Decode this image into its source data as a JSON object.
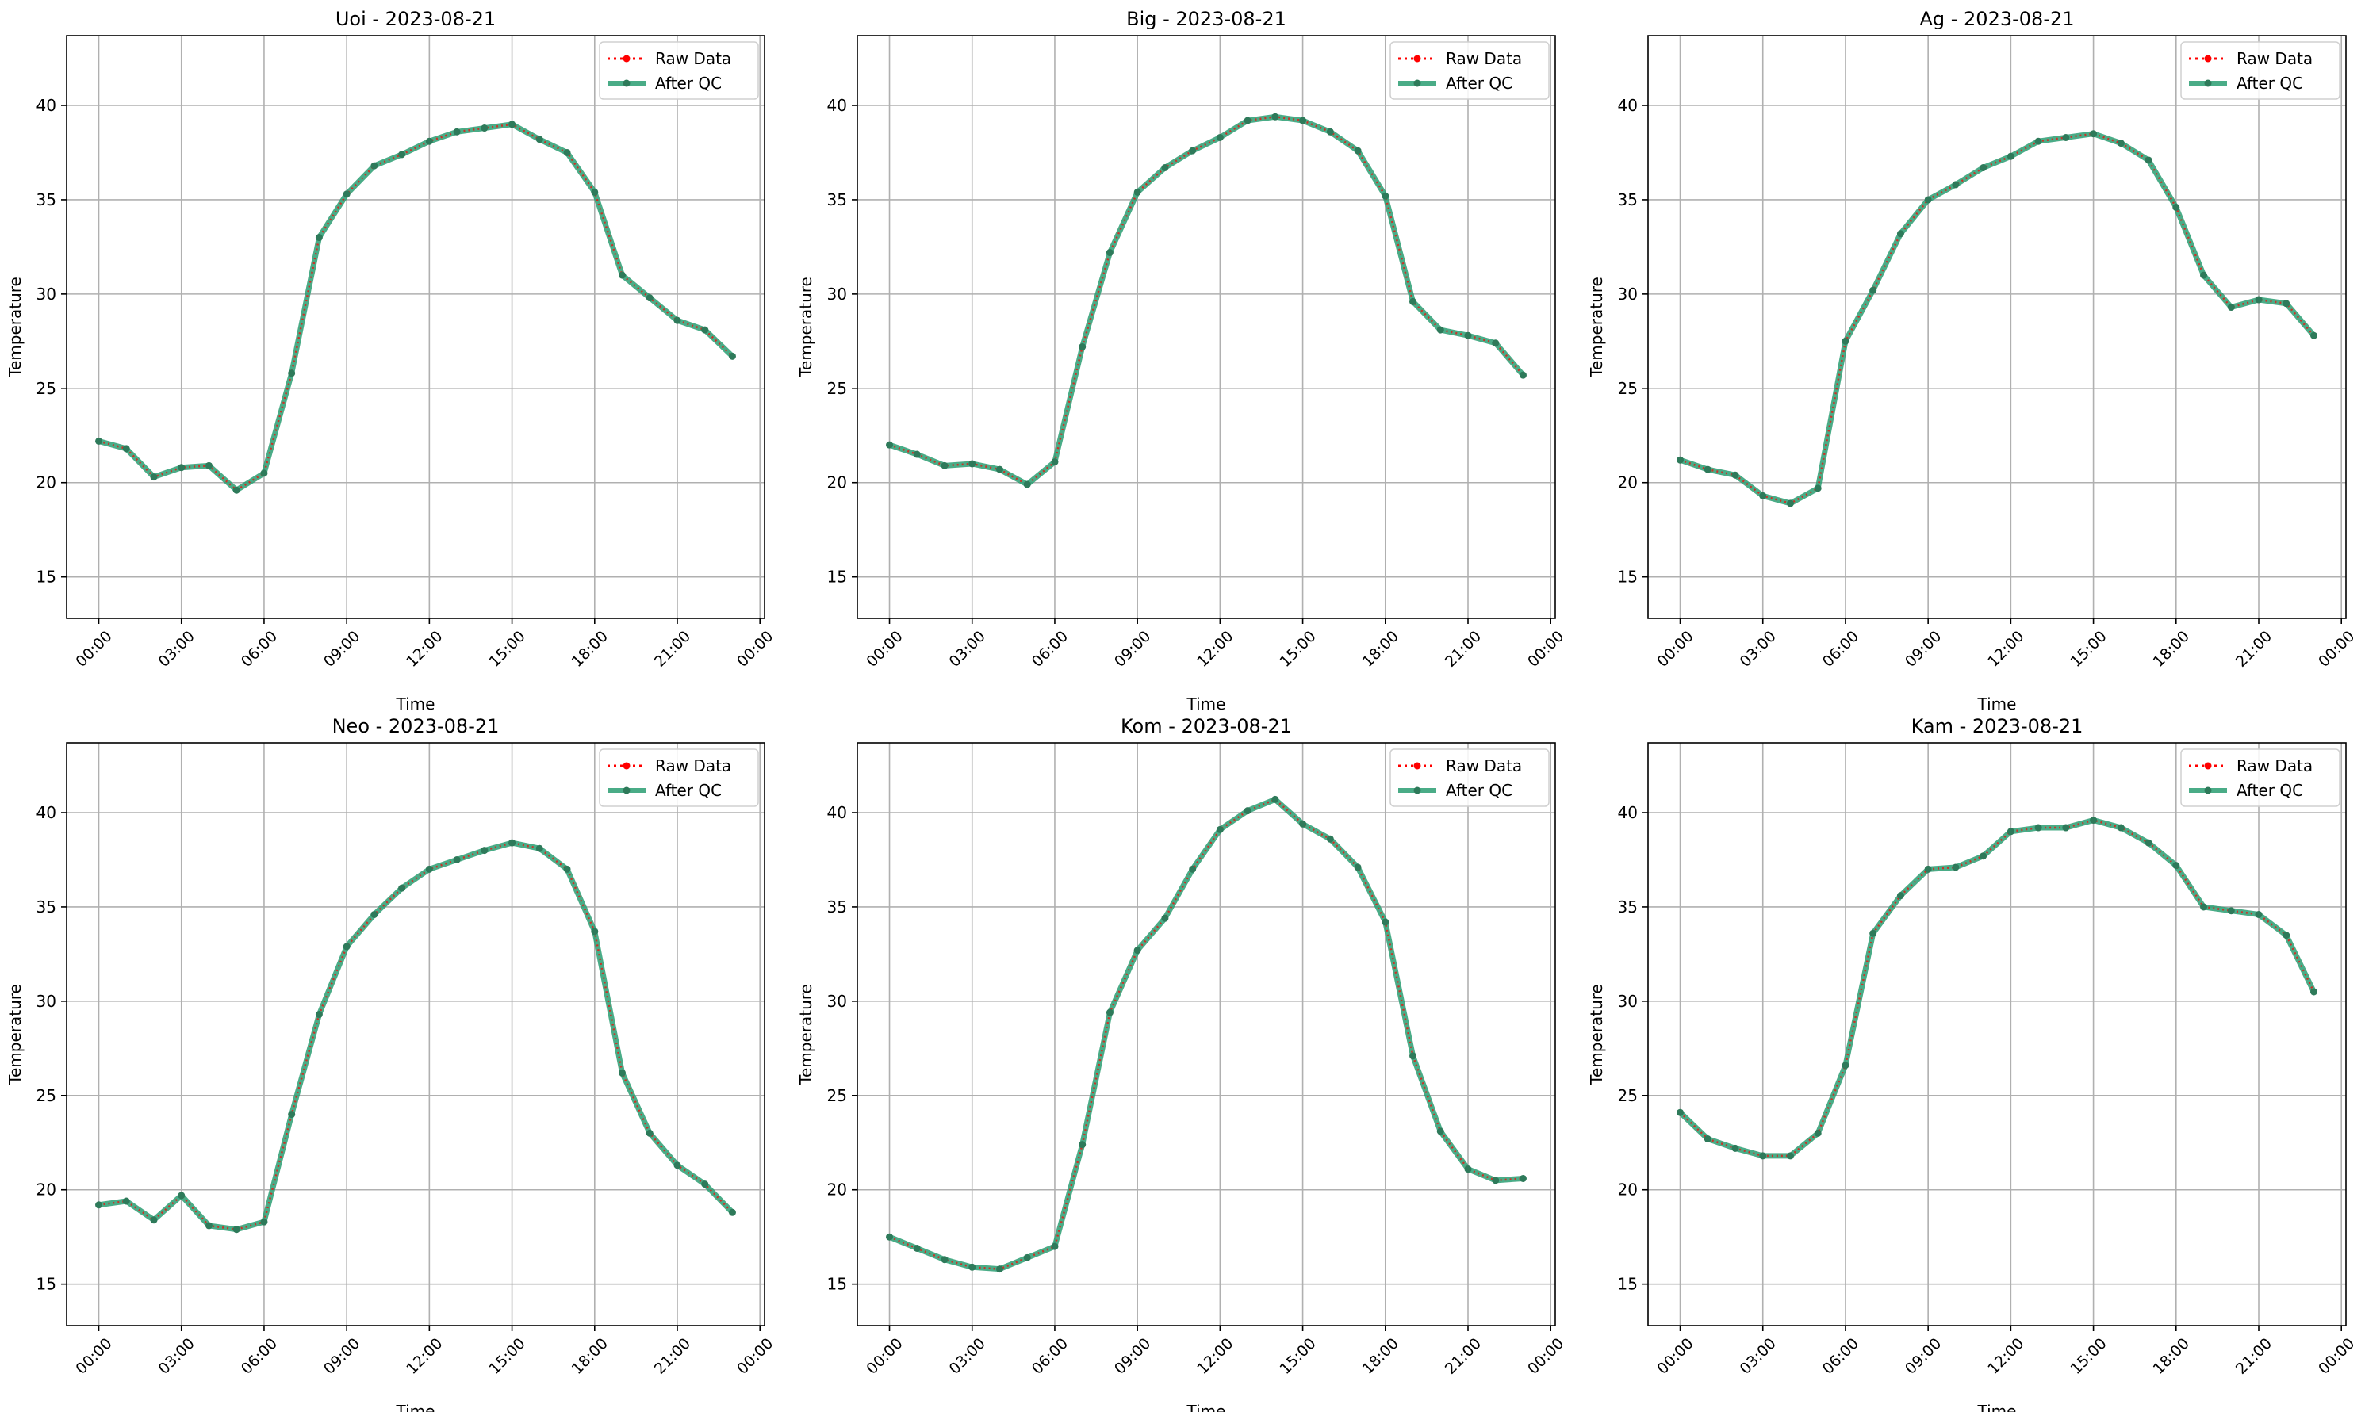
{
  "figure": {
    "legend_labels": [
      "Raw Data",
      "After QC"
    ],
    "colors": {
      "raw": "#ff0000",
      "qc": "#2a9d72",
      "qc_marker": "#2e7a5a",
      "grid": "#b0b0b0",
      "axis": "#000000"
    }
  },
  "chart_data": [
    {
      "type": "line",
      "title": "Uoi - 2023-08-21",
      "xlabel": "Time",
      "ylabel": "Temperature",
      "ylim": [
        12.8,
        43.7
      ],
      "xlim": [
        "2023-08-20 22:50",
        "2023-08-22 00:10"
      ],
      "x_ticks": [
        "00:00",
        "03:00",
        "06:00",
        "09:00",
        "12:00",
        "15:00",
        "18:00",
        "21:00",
        "00:00"
      ],
      "y_ticks": [
        15,
        20,
        25,
        30,
        35,
        40
      ],
      "grid": true,
      "legend_position": "upper right",
      "x": [
        "00:00",
        "01:00",
        "02:00",
        "03:00",
        "04:00",
        "05:00",
        "06:00",
        "07:00",
        "08:00",
        "09:00",
        "10:00",
        "11:00",
        "12:00",
        "13:00",
        "14:00",
        "15:00",
        "16:00",
        "17:00",
        "18:00",
        "19:00",
        "20:00",
        "21:00",
        "22:00",
        "23:00"
      ],
      "series": [
        {
          "name": "Raw Data",
          "values": [
            22.2,
            21.8,
            20.3,
            20.8,
            20.9,
            19.6,
            20.5,
            25.8,
            33.0,
            35.3,
            36.8,
            37.4,
            38.1,
            38.6,
            38.8,
            39.0,
            38.2,
            37.5,
            35.4,
            31.0,
            29.8,
            28.6,
            28.1,
            26.7
          ]
        },
        {
          "name": "After QC",
          "values": [
            22.2,
            21.8,
            20.3,
            20.8,
            20.9,
            19.6,
            20.5,
            25.8,
            33.0,
            35.3,
            36.8,
            37.4,
            38.1,
            38.6,
            38.8,
            39.0,
            38.2,
            37.5,
            35.4,
            31.0,
            29.8,
            28.6,
            28.1,
            26.7
          ]
        }
      ]
    },
    {
      "type": "line",
      "title": "Big - 2023-08-21",
      "xlabel": "Time",
      "ylabel": "Temperature",
      "ylim": [
        12.8,
        43.7
      ],
      "xlim": [
        "2023-08-20 22:50",
        "2023-08-22 00:10"
      ],
      "x_ticks": [
        "00:00",
        "03:00",
        "06:00",
        "09:00",
        "12:00",
        "15:00",
        "18:00",
        "21:00",
        "00:00"
      ],
      "y_ticks": [
        15,
        20,
        25,
        30,
        35,
        40
      ],
      "grid": true,
      "legend_position": "upper right",
      "x": [
        "00:00",
        "01:00",
        "02:00",
        "03:00",
        "04:00",
        "05:00",
        "06:00",
        "07:00",
        "08:00",
        "09:00",
        "10:00",
        "11:00",
        "12:00",
        "13:00",
        "14:00",
        "15:00",
        "16:00",
        "17:00",
        "18:00",
        "19:00",
        "20:00",
        "21:00",
        "22:00",
        "23:00"
      ],
      "series": [
        {
          "name": "Raw Data",
          "values": [
            22.0,
            21.5,
            20.9,
            21.0,
            20.7,
            19.9,
            21.1,
            27.2,
            32.2,
            35.4,
            36.7,
            37.6,
            38.3,
            39.2,
            39.4,
            39.2,
            38.6,
            37.6,
            35.2,
            29.6,
            28.1,
            27.8,
            27.4,
            25.7
          ]
        },
        {
          "name": "After QC",
          "values": [
            22.0,
            21.5,
            20.9,
            21.0,
            20.7,
            19.9,
            21.1,
            27.2,
            32.2,
            35.4,
            36.7,
            37.6,
            38.3,
            39.2,
            39.4,
            39.2,
            38.6,
            37.6,
            35.2,
            29.6,
            28.1,
            27.8,
            27.4,
            25.7
          ]
        }
      ]
    },
    {
      "type": "line",
      "title": "Ag - 2023-08-21",
      "xlabel": "Time",
      "ylabel": "Temperature",
      "ylim": [
        12.8,
        43.7
      ],
      "xlim": [
        "2023-08-20 22:50",
        "2023-08-22 00:10"
      ],
      "x_ticks": [
        "00:00",
        "03:00",
        "06:00",
        "09:00",
        "12:00",
        "15:00",
        "18:00",
        "21:00",
        "00:00"
      ],
      "y_ticks": [
        15,
        20,
        25,
        30,
        35,
        40
      ],
      "grid": true,
      "legend_position": "upper right",
      "x": [
        "00:00",
        "01:00",
        "02:00",
        "03:00",
        "04:00",
        "05:00",
        "06:00",
        "07:00",
        "08:00",
        "09:00",
        "10:00",
        "11:00",
        "12:00",
        "13:00",
        "14:00",
        "15:00",
        "16:00",
        "17:00",
        "18:00",
        "19:00",
        "20:00",
        "21:00",
        "22:00",
        "23:00"
      ],
      "series": [
        {
          "name": "Raw Data",
          "values": [
            21.2,
            20.7,
            20.4,
            19.3,
            18.9,
            19.7,
            27.5,
            30.2,
            33.2,
            35.0,
            35.8,
            36.7,
            37.3,
            38.1,
            38.3,
            38.5,
            38.0,
            37.1,
            34.6,
            31.0,
            29.3,
            29.7,
            29.5,
            27.8
          ]
        },
        {
          "name": "After QC",
          "values": [
            21.2,
            20.7,
            20.4,
            19.3,
            18.9,
            19.7,
            27.5,
            30.2,
            33.2,
            35.0,
            35.8,
            36.7,
            37.3,
            38.1,
            38.3,
            38.5,
            38.0,
            37.1,
            34.6,
            31.0,
            29.3,
            29.7,
            29.5,
            27.8
          ]
        }
      ]
    },
    {
      "type": "line",
      "title": "Neo - 2023-08-21",
      "xlabel": "Time",
      "ylabel": "Temperature",
      "ylim": [
        12.8,
        43.7
      ],
      "xlim": [
        "2023-08-20 22:50",
        "2023-08-22 00:10"
      ],
      "x_ticks": [
        "00:00",
        "03:00",
        "06:00",
        "09:00",
        "12:00",
        "15:00",
        "18:00",
        "21:00",
        "00:00"
      ],
      "y_ticks": [
        15,
        20,
        25,
        30,
        35,
        40
      ],
      "grid": true,
      "legend_position": "upper right",
      "x": [
        "00:00",
        "01:00",
        "02:00",
        "03:00",
        "04:00",
        "05:00",
        "06:00",
        "07:00",
        "08:00",
        "09:00",
        "10:00",
        "11:00",
        "12:00",
        "13:00",
        "14:00",
        "15:00",
        "16:00",
        "17:00",
        "18:00",
        "19:00",
        "20:00",
        "21:00",
        "22:00",
        "23:00"
      ],
      "series": [
        {
          "name": "Raw Data",
          "values": [
            19.2,
            19.4,
            18.4,
            19.7,
            18.1,
            17.9,
            18.3,
            24.0,
            29.3,
            32.9,
            34.6,
            36.0,
            37.0,
            37.5,
            38.0,
            38.4,
            38.1,
            37.0,
            33.7,
            26.2,
            23.0,
            21.3,
            20.3,
            18.8
          ]
        },
        {
          "name": "After QC",
          "values": [
            19.2,
            19.4,
            18.4,
            19.7,
            18.1,
            17.9,
            18.3,
            24.0,
            29.3,
            32.9,
            34.6,
            36.0,
            37.0,
            37.5,
            38.0,
            38.4,
            38.1,
            37.0,
            33.7,
            26.2,
            23.0,
            21.3,
            20.3,
            18.8
          ]
        }
      ]
    },
    {
      "type": "line",
      "title": "Kom - 2023-08-21",
      "xlabel": "Time",
      "ylabel": "Temperature",
      "ylim": [
        12.8,
        43.7
      ],
      "xlim": [
        "2023-08-20 22:50",
        "2023-08-22 00:10"
      ],
      "x_ticks": [
        "00:00",
        "03:00",
        "06:00",
        "09:00",
        "12:00",
        "15:00",
        "18:00",
        "21:00",
        "00:00"
      ],
      "y_ticks": [
        15,
        20,
        25,
        30,
        35,
        40
      ],
      "grid": true,
      "legend_position": "upper right",
      "x": [
        "00:00",
        "01:00",
        "02:00",
        "03:00",
        "04:00",
        "05:00",
        "06:00",
        "07:00",
        "08:00",
        "09:00",
        "10:00",
        "11:00",
        "12:00",
        "13:00",
        "14:00",
        "15:00",
        "16:00",
        "17:00",
        "18:00",
        "19:00",
        "20:00",
        "21:00",
        "22:00",
        "23:00"
      ],
      "series": [
        {
          "name": "Raw Data",
          "values": [
            17.5,
            16.9,
            16.3,
            15.9,
            15.8,
            16.4,
            17.0,
            22.4,
            29.4,
            32.7,
            34.4,
            37.0,
            39.1,
            40.1,
            40.7,
            39.4,
            38.6,
            37.1,
            34.2,
            27.1,
            23.1,
            21.1,
            20.5,
            20.6
          ]
        },
        {
          "name": "After QC",
          "values": [
            17.5,
            16.9,
            16.3,
            15.9,
            15.8,
            16.4,
            17.0,
            22.4,
            29.4,
            32.7,
            34.4,
            37.0,
            39.1,
            40.1,
            40.7,
            39.4,
            38.6,
            37.1,
            34.2,
            27.1,
            23.1,
            21.1,
            20.5,
            20.6
          ]
        }
      ]
    },
    {
      "type": "line",
      "title": "Kam - 2023-08-21",
      "xlabel": "Time",
      "ylabel": "Temperature",
      "ylim": [
        12.8,
        43.7
      ],
      "xlim": [
        "2023-08-20 22:50",
        "2023-08-22 00:10"
      ],
      "x_ticks": [
        "00:00",
        "03:00",
        "06:00",
        "09:00",
        "12:00",
        "15:00",
        "18:00",
        "21:00",
        "00:00"
      ],
      "y_ticks": [
        15,
        20,
        25,
        30,
        35,
        40
      ],
      "grid": true,
      "legend_position": "upper right",
      "x": [
        "00:00",
        "01:00",
        "02:00",
        "03:00",
        "04:00",
        "05:00",
        "06:00",
        "07:00",
        "08:00",
        "09:00",
        "10:00",
        "11:00",
        "12:00",
        "13:00",
        "14:00",
        "15:00",
        "16:00",
        "17:00",
        "18:00",
        "19:00",
        "20:00",
        "21:00",
        "22:00",
        "23:00"
      ],
      "series": [
        {
          "name": "Raw Data",
          "values": [
            24.1,
            22.7,
            22.2,
            21.8,
            21.8,
            23.0,
            26.6,
            33.6,
            35.6,
            37.0,
            37.1,
            37.7,
            39.0,
            39.2,
            39.2,
            39.6,
            39.2,
            38.4,
            37.2,
            35.0,
            34.8,
            34.6,
            33.5,
            30.5
          ]
        },
        {
          "name": "After QC",
          "values": [
            24.1,
            22.7,
            22.2,
            21.8,
            21.8,
            23.0,
            26.6,
            33.6,
            35.6,
            37.0,
            37.1,
            37.7,
            39.0,
            39.2,
            39.2,
            39.6,
            39.2,
            38.4,
            37.2,
            35.0,
            34.8,
            34.6,
            33.5,
            30.5
          ]
        }
      ]
    }
  ]
}
